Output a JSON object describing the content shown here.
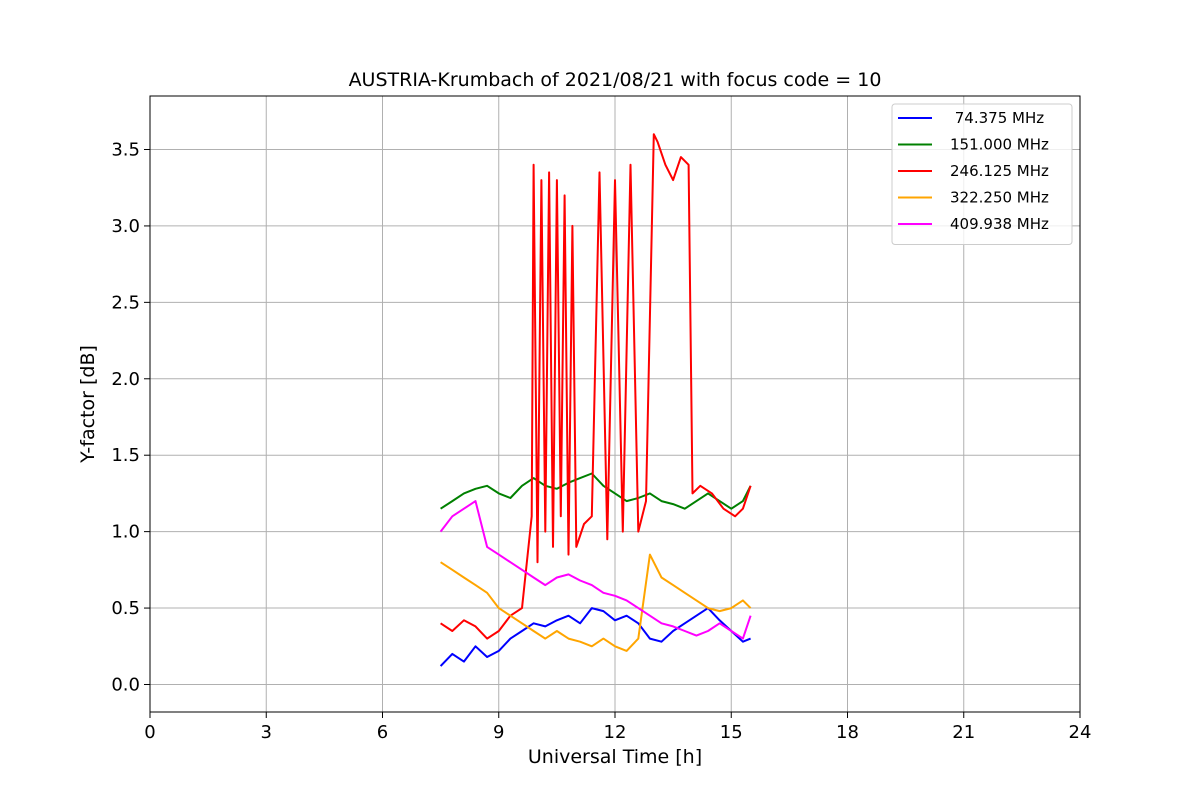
{
  "chart_data": {
    "type": "line",
    "title": "AUSTRIA-Krumbach of 2021/08/21 with focus code = 10",
    "xlabel": "Universal Time [h]",
    "ylabel": "Y-factor [dB]",
    "xlim": [
      0,
      24
    ],
    "ylim": [
      -0.18,
      3.85
    ],
    "xticks": [
      0,
      3,
      6,
      9,
      12,
      15,
      18,
      21,
      24
    ],
    "yticks": [
      0.0,
      0.5,
      1.0,
      1.5,
      2.0,
      2.5,
      3.0,
      3.5
    ],
    "xtick_labels": [
      "0",
      "3",
      "6",
      "9",
      "12",
      "15",
      "18",
      "21",
      "24"
    ],
    "ytick_labels": [
      "0.0",
      "0.5",
      "1.0",
      "1.5",
      "2.0",
      "2.5",
      "3.0",
      "3.5"
    ],
    "grid": true,
    "legend_position": "top-right",
    "series": [
      {
        "name": " 74.375 MHz",
        "color": "#0000ff",
        "x": [
          7.5,
          7.8,
          8.1,
          8.4,
          8.7,
          9.0,
          9.3,
          9.6,
          9.9,
          10.2,
          10.5,
          10.8,
          11.1,
          11.4,
          11.7,
          12.0,
          12.3,
          12.6,
          12.9,
          13.2,
          13.5,
          13.8,
          14.1,
          14.4,
          14.7,
          15.0,
          15.3,
          15.5
        ],
        "values": [
          0.12,
          0.2,
          0.15,
          0.25,
          0.18,
          0.22,
          0.3,
          0.35,
          0.4,
          0.38,
          0.42,
          0.45,
          0.4,
          0.5,
          0.48,
          0.42,
          0.45,
          0.4,
          0.3,
          0.28,
          0.35,
          0.4,
          0.45,
          0.5,
          0.42,
          0.35,
          0.28,
          0.3
        ]
      },
      {
        "name": "151.000 MHz",
        "color": "#008000",
        "x": [
          7.5,
          7.8,
          8.1,
          8.4,
          8.7,
          9.0,
          9.3,
          9.6,
          9.9,
          10.2,
          10.5,
          10.8,
          11.1,
          11.4,
          11.7,
          12.0,
          12.3,
          12.6,
          12.9,
          13.2,
          13.5,
          13.8,
          14.1,
          14.4,
          14.7,
          15.0,
          15.3,
          15.5
        ],
        "values": [
          1.15,
          1.2,
          1.25,
          1.28,
          1.3,
          1.25,
          1.22,
          1.3,
          1.35,
          1.3,
          1.28,
          1.32,
          1.35,
          1.38,
          1.3,
          1.25,
          1.2,
          1.22,
          1.25,
          1.2,
          1.18,
          1.15,
          1.2,
          1.25,
          1.2,
          1.15,
          1.2,
          1.3
        ]
      },
      {
        "name": "246.125 MHz",
        "color": "#ff0000",
        "x": [
          7.5,
          7.8,
          8.1,
          8.4,
          8.7,
          9.0,
          9.3,
          9.6,
          9.85,
          9.9,
          10.0,
          10.1,
          10.2,
          10.3,
          10.4,
          10.5,
          10.6,
          10.7,
          10.8,
          10.9,
          11.0,
          11.2,
          11.4,
          11.6,
          11.8,
          12.0,
          12.2,
          12.4,
          12.6,
          12.8,
          13.0,
          13.1,
          13.3,
          13.5,
          13.7,
          13.9,
          14.0,
          14.2,
          14.5,
          14.8,
          15.1,
          15.3,
          15.5
        ],
        "values": [
          0.4,
          0.35,
          0.42,
          0.38,
          0.3,
          0.35,
          0.45,
          0.5,
          1.1,
          3.4,
          0.8,
          3.3,
          1.0,
          3.35,
          0.9,
          3.3,
          1.1,
          3.2,
          0.85,
          3.0,
          0.9,
          1.05,
          1.1,
          3.35,
          0.95,
          3.3,
          1.0,
          3.4,
          1.0,
          1.2,
          3.6,
          3.55,
          3.4,
          3.3,
          3.45,
          3.4,
          1.25,
          1.3,
          1.25,
          1.15,
          1.1,
          1.15,
          1.3
        ]
      },
      {
        "name": "322.250 MHz",
        "color": "#ffa500",
        "x": [
          7.5,
          7.8,
          8.1,
          8.4,
          8.7,
          9.0,
          9.3,
          9.6,
          9.9,
          10.2,
          10.5,
          10.8,
          11.1,
          11.4,
          11.7,
          12.0,
          12.3,
          12.6,
          12.9,
          13.2,
          13.5,
          13.8,
          14.1,
          14.4,
          14.7,
          15.0,
          15.3,
          15.5
        ],
        "values": [
          0.8,
          0.75,
          0.7,
          0.65,
          0.6,
          0.5,
          0.45,
          0.4,
          0.35,
          0.3,
          0.35,
          0.3,
          0.28,
          0.25,
          0.3,
          0.25,
          0.22,
          0.3,
          0.85,
          0.7,
          0.65,
          0.6,
          0.55,
          0.5,
          0.48,
          0.5,
          0.55,
          0.5
        ]
      },
      {
        "name": "409.938 MHz",
        "color": "#ff00ff",
        "x": [
          7.5,
          7.8,
          8.1,
          8.4,
          8.7,
          9.0,
          9.3,
          9.6,
          9.9,
          10.2,
          10.5,
          10.8,
          11.1,
          11.4,
          11.7,
          12.0,
          12.3,
          12.6,
          12.9,
          13.2,
          13.5,
          13.8,
          14.1,
          14.4,
          14.7,
          15.0,
          15.3,
          15.5
        ],
        "values": [
          1.0,
          1.1,
          1.15,
          1.2,
          0.9,
          0.85,
          0.8,
          0.75,
          0.7,
          0.65,
          0.7,
          0.72,
          0.68,
          0.65,
          0.6,
          0.58,
          0.55,
          0.5,
          0.45,
          0.4,
          0.38,
          0.35,
          0.32,
          0.35,
          0.4,
          0.35,
          0.3,
          0.45
        ]
      }
    ]
  }
}
